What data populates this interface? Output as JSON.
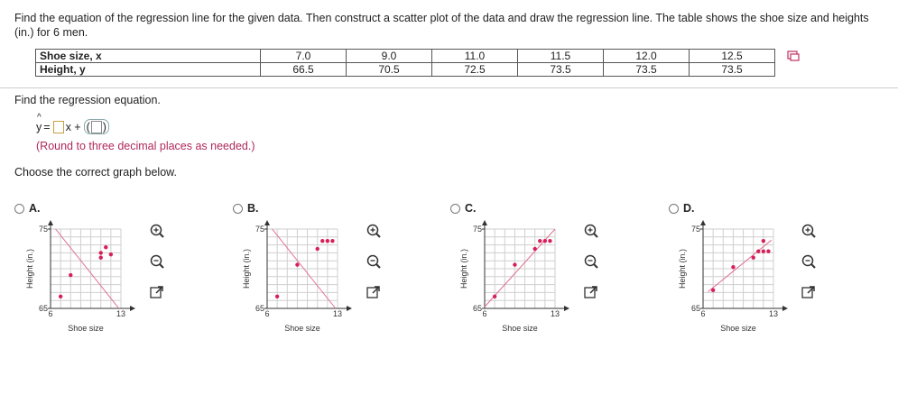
{
  "question": "Find the equation of the regression line for the given data. Then construct a scatter plot of the data and draw the regression line. The table shows the shoe size and heights (in.) for 6 men.",
  "table": {
    "row1_label": "Shoe size, x",
    "row2_label": "Height, y",
    "x": [
      "7.0",
      "9.0",
      "11.0",
      "11.5",
      "12.0",
      "12.5"
    ],
    "y": [
      "66.5",
      "70.5",
      "72.5",
      "73.5",
      "73.5",
      "73.5"
    ]
  },
  "find_text": "Find the regression equation.",
  "equation": {
    "lhs": "y",
    "eq": "=",
    "x_plus": "x +"
  },
  "round_text": "(Round to three decimal places as needed.)",
  "choose_text": "Choose the correct graph below.",
  "colors": {
    "points": "#d6205a",
    "line": "#e07090",
    "grid": "#cfcfcf",
    "instruction": "#b0285a"
  },
  "chart_data": [
    {
      "type": "scatter",
      "option": "A.",
      "xlabel": "Shoe size",
      "ylabel": "Height (in.)",
      "xlim": [
        6,
        13
      ],
      "ylim": [
        65,
        75
      ],
      "x_ticks": [
        "6",
        "13"
      ],
      "y_ticks": [
        "75",
        "65"
      ],
      "points": [
        [
          7,
          66.5
        ],
        [
          8,
          69.2
        ],
        [
          11,
          71.4
        ],
        [
          11,
          72
        ],
        [
          12,
          71.8
        ],
        [
          11.5,
          72.7
        ]
      ],
      "line": [
        [
          6.5,
          75
        ],
        [
          12.8,
          65
        ]
      ]
    },
    {
      "type": "scatter",
      "option": "B.",
      "xlabel": "Shoe size",
      "ylabel": "Height (in.)",
      "xlim": [
        6,
        13
      ],
      "ylim": [
        65,
        75
      ],
      "x_ticks": [
        "6",
        "13"
      ],
      "y_ticks": [
        "75",
        "65"
      ],
      "points": [
        [
          7,
          66.5
        ],
        [
          9,
          70.5
        ],
        [
          11,
          72.5
        ],
        [
          11.5,
          73.5
        ],
        [
          12,
          73.5
        ],
        [
          12.5,
          73.5
        ]
      ],
      "line": [
        [
          6.5,
          75
        ],
        [
          12.8,
          65
        ]
      ]
    },
    {
      "type": "scatter",
      "option": "C.",
      "xlabel": "Shoe size",
      "ylabel": "Height (in.)",
      "xlim": [
        6,
        13
      ],
      "ylim": [
        65,
        75
      ],
      "x_ticks": [
        "6",
        "13"
      ],
      "y_ticks": [
        "75",
        "65"
      ],
      "points": [
        [
          7,
          66.5
        ],
        [
          9,
          70.5
        ],
        [
          11,
          72.5
        ],
        [
          11.5,
          73.5
        ],
        [
          12,
          73.5
        ],
        [
          12.5,
          73.5
        ]
      ],
      "line": [
        [
          6,
          65.2
        ],
        [
          13,
          75
        ]
      ]
    },
    {
      "type": "scatter",
      "option": "D.",
      "xlabel": "Shoe size",
      "ylabel": "Height (in.)",
      "xlim": [
        6,
        13
      ],
      "ylim": [
        65,
        75
      ],
      "x_ticks": [
        "6",
        "13"
      ],
      "y_ticks": [
        "75",
        "65"
      ],
      "points": [
        [
          7,
          67.3
        ],
        [
          9,
          70.2
        ],
        [
          11,
          71.4
        ],
        [
          11.5,
          72.2
        ],
        [
          12,
          72.2
        ],
        [
          12,
          73.5
        ],
        [
          12.5,
          72.2
        ]
      ],
      "line": [
        [
          6.5,
          67.1
        ],
        [
          12.8,
          73.6
        ]
      ]
    }
  ]
}
